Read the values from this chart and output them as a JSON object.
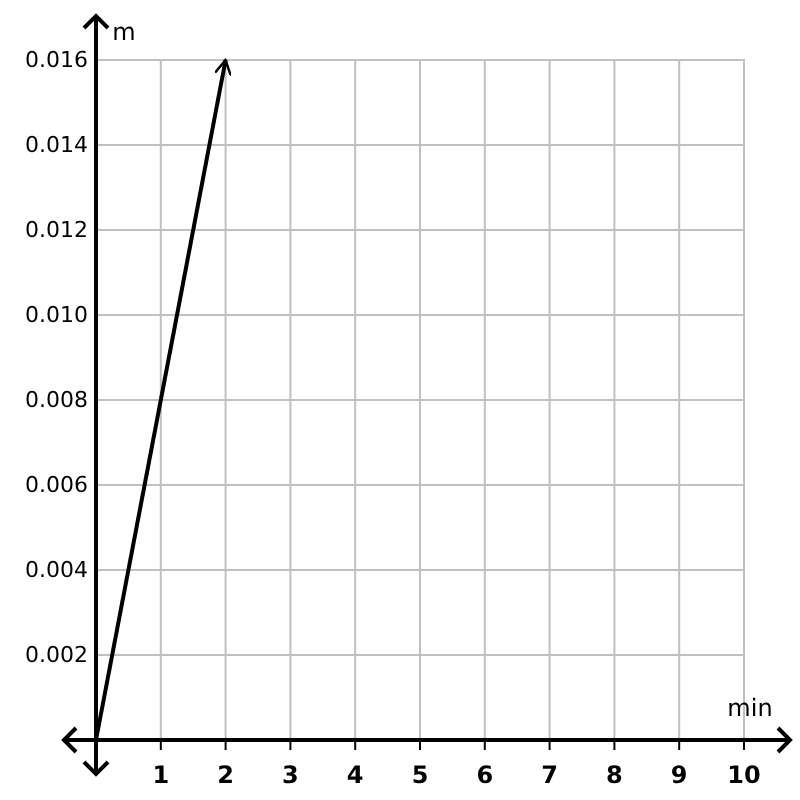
{
  "chart_data": {
    "type": "line",
    "xlabel": "min",
    "ylabel": "m",
    "x": [
      0,
      2
    ],
    "series": [
      {
        "color": "#000000",
        "values": [
          0,
          0.016
        ]
      }
    ],
    "xlim": [
      0,
      10
    ],
    "ylim": [
      0,
      0.016
    ],
    "xticks": [
      1,
      2,
      3,
      4,
      5,
      6,
      7,
      8,
      9,
      10
    ],
    "yticks": [
      0.002,
      0.004,
      0.006,
      0.008,
      {
        "value": 0.01,
        "label": "0.010"
      },
      0.012,
      0.014,
      0.016
    ],
    "grid": true,
    "marker": "none",
    "line_style": "solid"
  }
}
